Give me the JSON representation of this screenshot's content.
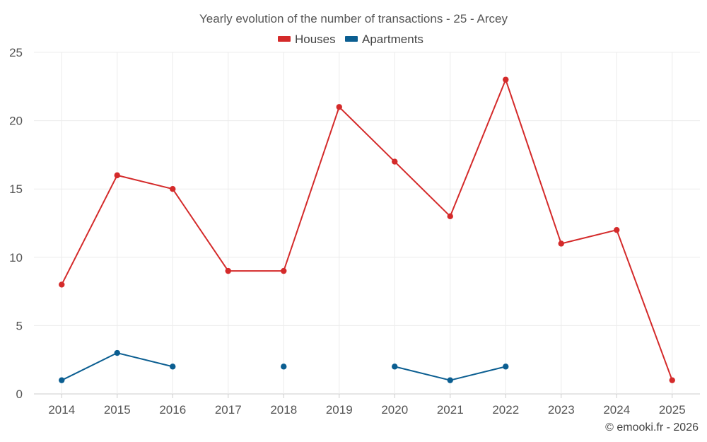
{
  "chart_data": {
    "type": "line",
    "title": "Yearly evolution of the number of transactions - 25 - Arcey",
    "categories": [
      "2014",
      "2015",
      "2016",
      "2017",
      "2018",
      "2019",
      "2020",
      "2021",
      "2022",
      "2023",
      "2024",
      "2025"
    ],
    "series": [
      {
        "name": "Houses",
        "color": "#d42a2a",
        "values": [
          8,
          16,
          15,
          9,
          9,
          21,
          17,
          13,
          23,
          11,
          12,
          1
        ]
      },
      {
        "name": "Apartments",
        "color": "#0b5e91",
        "values": [
          1,
          3,
          2,
          null,
          2,
          null,
          2,
          1,
          2,
          null,
          null,
          null
        ]
      }
    ],
    "ylim": [
      0,
      25
    ],
    "yticks": [
      0,
      5,
      10,
      15,
      20,
      25
    ],
    "xlabel": "",
    "ylabel": "",
    "grid": true,
    "legend_position": "top-center"
  },
  "credit": "© emooki.fr - 2026"
}
